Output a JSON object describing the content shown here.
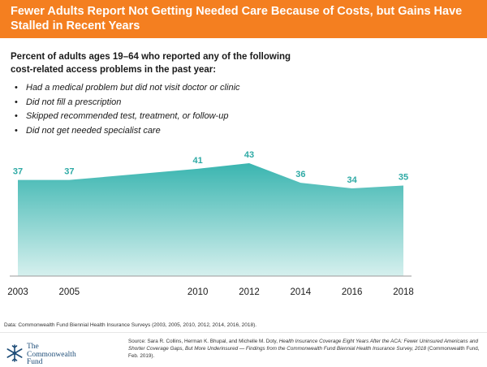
{
  "header": {
    "title": "Fewer Adults Report Not Getting Needed Care Because of Costs, but Gains Have Stalled in Recent Years"
  },
  "subtitle": "Percent of adults ages 19–64 who reported any of the following cost-related access problems in the past year:",
  "bullets": [
    "Had a medical problem but did not visit doctor or clinic",
    "Did not fill a prescription",
    "Skipped recommended test, treatment, or follow-up",
    "Did not get needed specialist care"
  ],
  "chart_data": {
    "type": "area",
    "title": "",
    "xlabel": "",
    "ylabel": "",
    "x": [
      "2003",
      "2005",
      "2010",
      "2012",
      "2014",
      "2016",
      "2018"
    ],
    "series": [
      {
        "values": [
          37,
          37,
          41,
          43,
          36,
          34,
          35
        ]
      }
    ],
    "ylim": [
      0,
      50
    ],
    "grid": false,
    "legend": "none",
    "colors": {
      "fill_top": "#3ab5b0",
      "fill_bottom": "#d6f0ee",
      "label": "#2eaaa5",
      "axis": "#9a9a9a"
    }
  },
  "data_note": "Data: Commonwealth Fund Biennial Health Insurance Surveys (2003, 2005, 2010, 2012, 2014, 2016, 2018).",
  "footer": {
    "logo_line1": "The",
    "logo_line2": "Commonwealth",
    "logo_line3": "Fund",
    "source_prefix": "Source: Sara R. Collins, Herman K. Bhupal, and Michelle M. Doty, ",
    "source_title": "Health Insurance Coverage Eight Years After the ACA: Fewer Uninsured Americans and Shorter Coverage Gaps, But More Underinsured — Findings from the Commonwealth Fund Biennial Health Insurance Survey, 2018",
    "source_suffix": " (Commonwealth Fund, Feb. 2019)."
  },
  "colors": {
    "header_bg": "#f47f20",
    "brand_blue": "#1f4e79"
  }
}
